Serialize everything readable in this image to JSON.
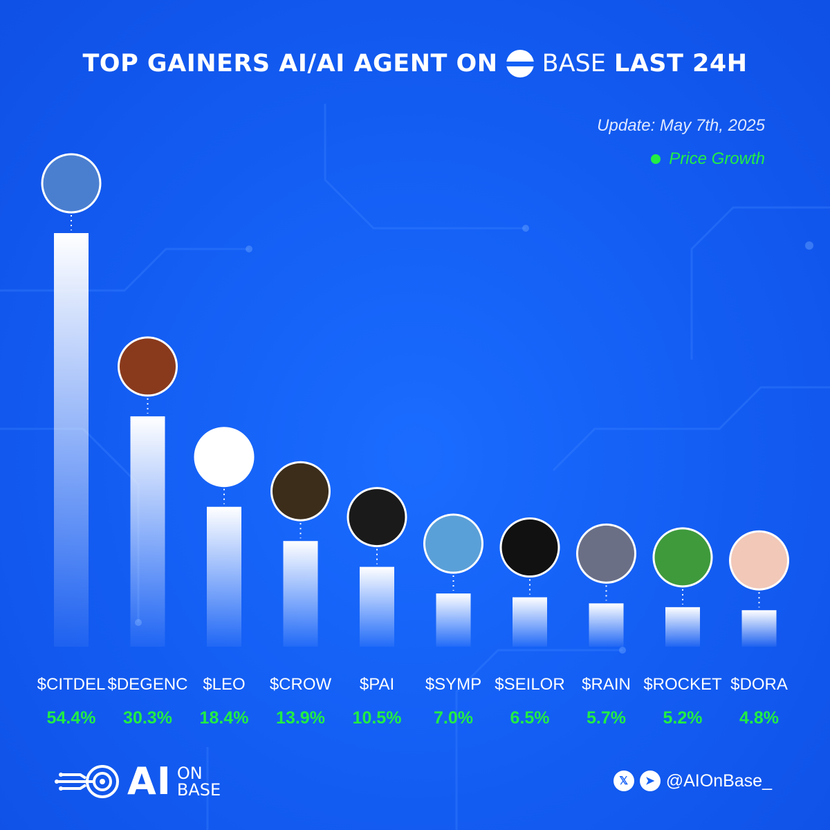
{
  "title": {
    "prefix": "TOP GAINERS AI/AI AGENT ON",
    "brand": "BASE",
    "suffix": "LAST 24H"
  },
  "update_text": "Update: May 7th, 2025",
  "legend_label": "Price Growth",
  "colors": {
    "background": "#1460f5",
    "accent_green": "#22ee44",
    "bar_top": "#ffffff"
  },
  "chart_data": {
    "type": "bar",
    "categories": [
      "$CITDEL",
      "$DEGENC",
      "$LEO",
      "$CROW",
      "$PAI",
      "$SYMP",
      "$SEILOR",
      "$RAIN",
      "$ROCKET",
      "$DORA"
    ],
    "value_labels": [
      "54.4%",
      "30.3%",
      "18.4%",
      "13.9%",
      "10.5%",
      "7.0%",
      "6.5%",
      "5.7%",
      "5.2%",
      "4.8%"
    ],
    "values": [
      54.4,
      30.3,
      18.4,
      13.9,
      10.5,
      7.0,
      6.5,
      5.7,
      5.2,
      4.8
    ],
    "unit": "%",
    "token_icons": [
      "elephant-icon",
      "bitcoin-throne-icon",
      "lion-icon",
      "crow-icon",
      "slash-icon",
      "fish-creature-icon",
      "seilor-logo-icon",
      "wolf-samurai-icon",
      "raccoon-computer-icon",
      "dora-girl-icon"
    ],
    "ylim": [
      0,
      60
    ],
    "legend_position": "top-right"
  },
  "footer": {
    "logo_ai": "AI",
    "logo_on": "ON",
    "logo_base": "BASE",
    "handle": "@AIOnBase_",
    "social_icons": [
      "x-icon",
      "telegram-icon"
    ]
  }
}
